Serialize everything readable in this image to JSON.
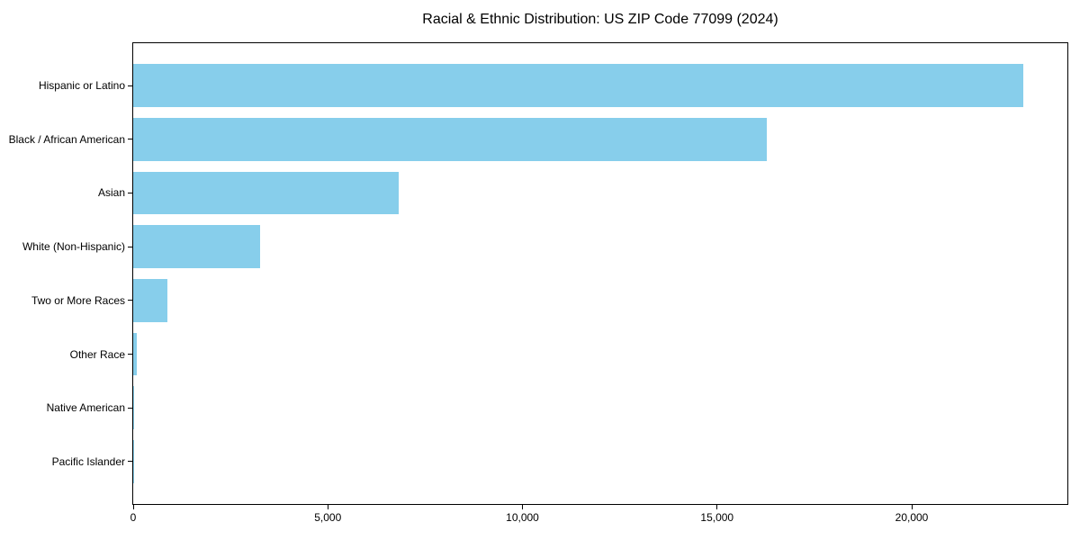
{
  "chart_data": {
    "type": "bar",
    "orientation": "horizontal",
    "title": "Racial & Ethnic Distribution: US ZIP Code 77099 (2024)",
    "categories": [
      "Hispanic or Latino",
      "Black / African American",
      "Asian",
      "White (Non-Hispanic)",
      "Two or More Races",
      "Other Race",
      "Native American",
      "Pacific Islander"
    ],
    "values": [
      22860,
      16270,
      6830,
      3270,
      890,
      90,
      30,
      10
    ],
    "xlabel": "",
    "ylabel": "",
    "xlim": [
      0,
      24000
    ],
    "xticks": [
      0,
      5000,
      10000,
      15000,
      20000
    ],
    "xtick_labels": [
      "0",
      "5,000",
      "10,000",
      "15,000",
      "20,000"
    ],
    "bar_color": "#87CEEB",
    "frame_color": "#000000",
    "text_color": "#000000",
    "background_color": "#ffffff",
    "grid": false,
    "legend": null
  }
}
